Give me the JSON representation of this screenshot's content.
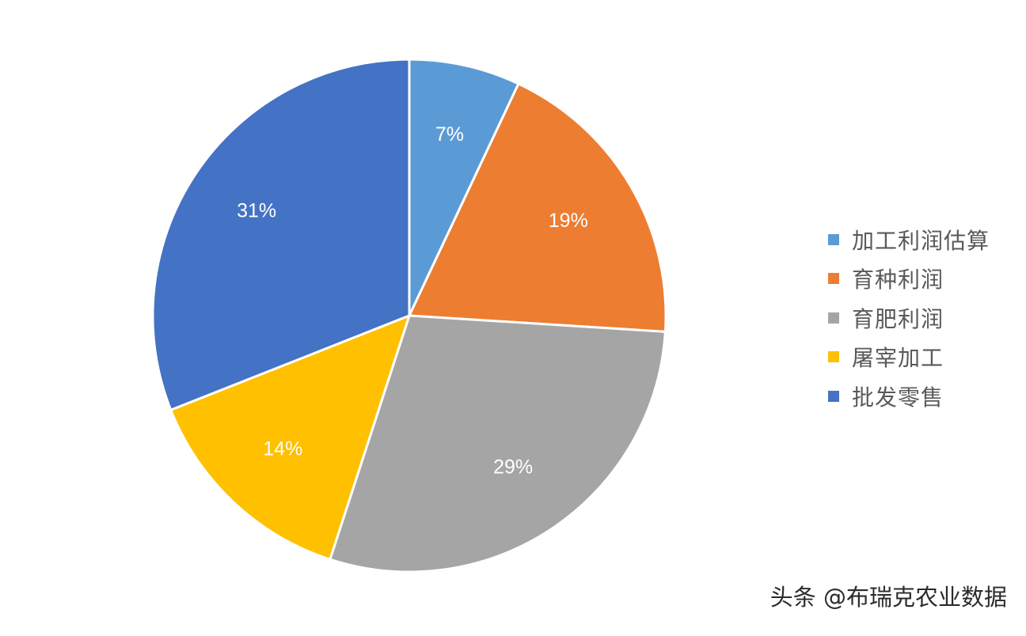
{
  "chart_data": {
    "type": "pie",
    "title": "",
    "slices": [
      {
        "label": "加工利润估算",
        "value": 7,
        "display": "7%",
        "color": "#5B9BD5"
      },
      {
        "label": "育种利润",
        "value": 19,
        "display": "19%",
        "color": "#ED7D31"
      },
      {
        "label": "育肥利润",
        "value": 29,
        "display": "29%",
        "color": "#A5A5A5"
      },
      {
        "label": "屠宰加工",
        "value": 14,
        "display": "14%",
        "color": "#FFC000"
      },
      {
        "label": "批发零售",
        "value": 31,
        "display": "31%",
        "color": "#4472C4"
      }
    ],
    "start_angle": "12 o'clock",
    "direction": "clockwise",
    "legend_position": "right"
  },
  "legend": {
    "items": [
      {
        "label": "加工利润估算",
        "color": "#5B9BD5"
      },
      {
        "label": "育种利润",
        "color": "#ED7D31"
      },
      {
        "label": "育肥利润",
        "color": "#A5A5A5"
      },
      {
        "label": "屠宰加工",
        "color": "#FFC000"
      },
      {
        "label": "批发零售",
        "color": "#4472C4"
      }
    ]
  },
  "watermark": "头条 @布瑞克农业数据"
}
